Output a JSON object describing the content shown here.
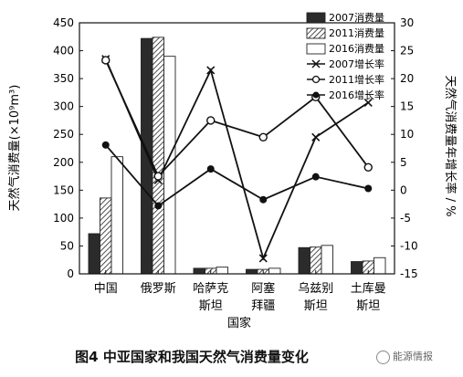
{
  "caption": "图4   中亚国家和我国天然气消费量变化",
  "watermark": "能源情报",
  "chart_data": {
    "type": "bar+line",
    "xlabel": "国家",
    "ylabel_left": "天然气消费量(×10⁹m³)",
    "ylabel_right": "天然气消费量年增长率 / %",
    "ylim_left": [
      0,
      450
    ],
    "yticks_left": [
      0,
      50,
      100,
      150,
      200,
      250,
      300,
      350,
      400,
      450
    ],
    "ylim_right": [
      -15,
      30
    ],
    "yticks_right": [
      -15,
      -10,
      -5,
      0,
      5,
      10,
      15,
      20,
      25,
      30
    ],
    "categories": [
      {
        "line1": "中国",
        "line2": ""
      },
      {
        "line1": "俄罗斯",
        "line2": ""
      },
      {
        "line1": "哈萨克",
        "line2": "斯坦"
      },
      {
        "line1": "阿塞",
        "line2": "拜疆"
      },
      {
        "line1": "乌兹别",
        "line2": "斯坦"
      },
      {
        "line1": "土库曼",
        "line2": "斯坦"
      }
    ],
    "bar_series": [
      {
        "name": "2007消费量",
        "style": "dark",
        "values": [
          72,
          422,
          10,
          8,
          47,
          22
        ]
      },
      {
        "name": "2011消费量",
        "style": "hatch",
        "values": [
          136,
          424,
          10,
          8,
          48,
          23
        ]
      },
      {
        "name": "2016消费量",
        "style": "white",
        "values": [
          210,
          390,
          12,
          10,
          51,
          29
        ]
      }
    ],
    "line_series": [
      {
        "name": "2007增长率",
        "marker": "x",
        "values": [
          23.5,
          1.8,
          21.5,
          -12.2,
          9.5,
          15.7
        ]
      },
      {
        "name": "2011增长率",
        "marker": "o",
        "values": [
          23.3,
          2.5,
          12.5,
          9.5,
          16.7,
          4.1
        ]
      },
      {
        "name": "2016增长率",
        "marker": "dot",
        "values": [
          8.1,
          -2.8,
          3.8,
          -1.7,
          2.4,
          0.3
        ]
      }
    ]
  }
}
